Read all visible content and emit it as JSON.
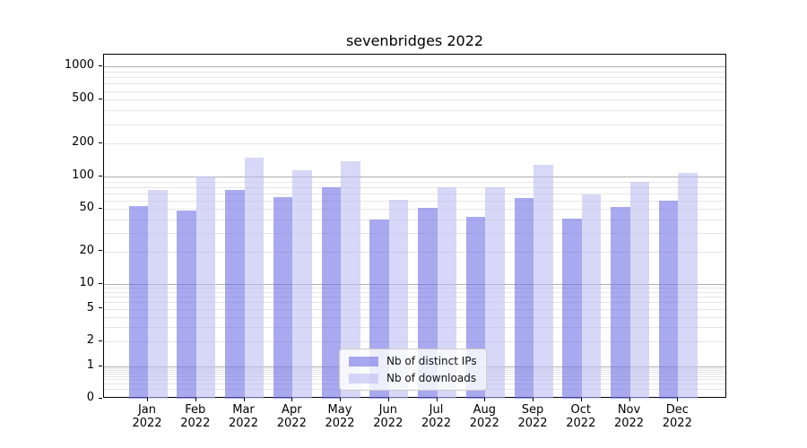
{
  "title": "sevenbridges 2022",
  "legend": {
    "items": [
      {
        "label": "Nb of distinct IPs"
      },
      {
        "label": "Nb of downloads"
      }
    ]
  },
  "colors": {
    "grid_major": "#b0b0b0",
    "grid_minor": "#e6e6e6",
    "axis": "#000000",
    "series_dark": "#a9a9f0",
    "series_light": "#d7d7f8"
  },
  "chart_data": {
    "type": "bar",
    "title": "sevenbridges 2022",
    "categories": [
      "Jan 2022",
      "Feb 2022",
      "Mar 2022",
      "Apr 2022",
      "May 2022",
      "Jun 2022",
      "Jul 2022",
      "Aug 2022",
      "Sep 2022",
      "Oct 2022",
      "Nov 2022",
      "Dec 2022"
    ],
    "series": [
      {
        "name": "Nb of distinct IPs",
        "color": "#a9a9f0",
        "color_rgba": "rgba(112,112,230,0.6)",
        "values": [
          53,
          48,
          75,
          65,
          79,
          40,
          51,
          42,
          63,
          41,
          52,
          60
        ]
      },
      {
        "name": "Nb of downloads",
        "color": "#d7d7f8",
        "color_rgba": "rgba(188,188,243,0.6)",
        "values": [
          75,
          100,
          148,
          114,
          137,
          61,
          79,
          79,
          127,
          68,
          90,
          108
        ]
      }
    ],
    "yscale": "symlog",
    "ylim": [
      0,
      1284
    ],
    "y_ticks": [
      {
        "value": 1000,
        "label": "1000"
      },
      {
        "value": 500,
        "label": "500"
      },
      {
        "value": 200,
        "label": "200"
      },
      {
        "value": 100,
        "label": "100"
      },
      {
        "value": 50,
        "label": "50"
      },
      {
        "value": 20,
        "label": "20"
      },
      {
        "value": 10,
        "label": "10"
      },
      {
        "value": 5,
        "label": "5"
      },
      {
        "value": 2,
        "label": "2"
      },
      {
        "value": 1,
        "label": "1"
      },
      {
        "value": 0,
        "label": "0"
      }
    ],
    "grid": true,
    "legend_position": "lower center"
  }
}
